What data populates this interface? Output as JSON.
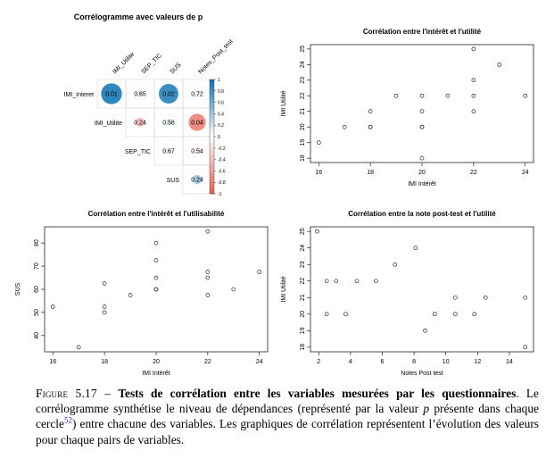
{
  "caption": {
    "figure_label": "Figure 5.17 –",
    "bold_title": "Tests de corrélation entre les variables mesurées par les questionnaires",
    "text_part1": ". Le corrélogramme synthétise le niveau de dépendances (représenté par la valeur",
    "p_symbol": "p",
    "text_part2": "présente dans chaque cercle",
    "footnote_ref": "52",
    "text_part3": ") entre chacune des variables. Les graphiques de corrélation représentent l’évolution des valeurs pour chaque pairs de variables."
  },
  "chart_data": [
    {
      "type": "heatmap",
      "title": "Corrélogramme avec valeurs de p",
      "columns": [
        "IMI_Utilite",
        "SEP_TIC",
        "SUS",
        "Notes_Post_test"
      ],
      "rows": [
        "IMI_Interet",
        "IMI_Utilite",
        "SEP_TIC",
        "SUS"
      ],
      "cells": [
        {
          "row": 0,
          "col": 0,
          "p": "0.01",
          "corr": 0.85
        },
        {
          "row": 0,
          "col": 1,
          "p": "0.65",
          "corr": 0.1
        },
        {
          "row": 0,
          "col": 2,
          "p": "0.02",
          "corr": 0.8
        },
        {
          "row": 0,
          "col": 3,
          "p": "0.72",
          "corr": 0.09
        },
        {
          "row": 1,
          "col": 1,
          "p": "0.24",
          "corr": -0.38
        },
        {
          "row": 1,
          "col": 2,
          "p": "0.58",
          "corr": 0.12
        },
        {
          "row": 1,
          "col": 3,
          "p": "0.04",
          "corr": -0.7
        },
        {
          "row": 2,
          "col": 2,
          "p": "0.67",
          "corr": 0.08
        },
        {
          "row": 2,
          "col": 3,
          "p": "0.54",
          "corr": -0.14
        },
        {
          "row": 3,
          "col": 3,
          "p": "0.24",
          "corr": 0.38
        }
      ],
      "colorbar_ticks": [
        "1",
        "0.8",
        "0.6",
        "0.4",
        "0.2",
        "0",
        "-0.2",
        "-0.4",
        "-0.6",
        "-0.8",
        "-1"
      ],
      "colors": {
        "positive": "#0b72b3",
        "negative": "#e65c4f",
        "neutral": "#ffffff"
      }
    },
    {
      "type": "scatter",
      "title": "Corrélation entre l'intérêt et l'utilité",
      "xlabel": "IMI Intérêt",
      "ylabel": "IMI Utilité",
      "xlim": [
        16,
        24
      ],
      "ylim": [
        18,
        25
      ],
      "xticks": [
        16,
        18,
        20,
        22,
        24
      ],
      "yticks": [
        18,
        19,
        20,
        21,
        22,
        23,
        24,
        25
      ],
      "points": [
        [
          16,
          19
        ],
        [
          17,
          20
        ],
        [
          18,
          20
        ],
        [
          18,
          20
        ],
        [
          18,
          21
        ],
        [
          19,
          22
        ],
        [
          20,
          18
        ],
        [
          20,
          20
        ],
        [
          20,
          20
        ],
        [
          20,
          21
        ],
        [
          20,
          22
        ],
        [
          21,
          22
        ],
        [
          22,
          21
        ],
        [
          22,
          22
        ],
        [
          22,
          23
        ],
        [
          22,
          25
        ],
        [
          23,
          24
        ],
        [
          24,
          22
        ]
      ]
    },
    {
      "type": "scatter",
      "title": "Corrélation entre l'intérêt et l'utilisabilité",
      "xlabel": "IMI Intérêt",
      "ylabel": "SUS",
      "xlim": [
        16,
        24
      ],
      "ylim": [
        35,
        85
      ],
      "xticks": [
        16,
        18,
        20,
        22,
        24
      ],
      "yticks": [
        40,
        50,
        60,
        70,
        80
      ],
      "points": [
        [
          16,
          52.5
        ],
        [
          17,
          35
        ],
        [
          18,
          50
        ],
        [
          18,
          52.5
        ],
        [
          18,
          62.5
        ],
        [
          19,
          57.5
        ],
        [
          20,
          60
        ],
        [
          20,
          60
        ],
        [
          20,
          65
        ],
        [
          20,
          72.5
        ],
        [
          20,
          80
        ],
        [
          22,
          57.5
        ],
        [
          22,
          65
        ],
        [
          22,
          67.5
        ],
        [
          22,
          85
        ],
        [
          23,
          60
        ],
        [
          24,
          67.5
        ]
      ]
    },
    {
      "type": "scatter",
      "title": "Corrélation entre la note post-test et l'utilité",
      "xlabel": "Notes Post test",
      "ylabel": "IMI Utilité",
      "xlim": [
        2,
        15
      ],
      "ylim": [
        18,
        25
      ],
      "xticks": [
        2,
        4,
        6,
        8,
        10,
        12,
        14
      ],
      "yticks": [
        18,
        19,
        20,
        21,
        22,
        23,
        24,
        25
      ],
      "points": [
        [
          1.9,
          25
        ],
        [
          2.5,
          20
        ],
        [
          2.5,
          22
        ],
        [
          3.1,
          22
        ],
        [
          3.7,
          20
        ],
        [
          4.4,
          22
        ],
        [
          5.6,
          22
        ],
        [
          6.8,
          23
        ],
        [
          8.1,
          24
        ],
        [
          8.7,
          19
        ],
        [
          9.3,
          20
        ],
        [
          10.6,
          20
        ],
        [
          10.6,
          21
        ],
        [
          11.8,
          20
        ],
        [
          12.5,
          21
        ],
        [
          15,
          18
        ],
        [
          15,
          21
        ]
      ]
    }
  ]
}
